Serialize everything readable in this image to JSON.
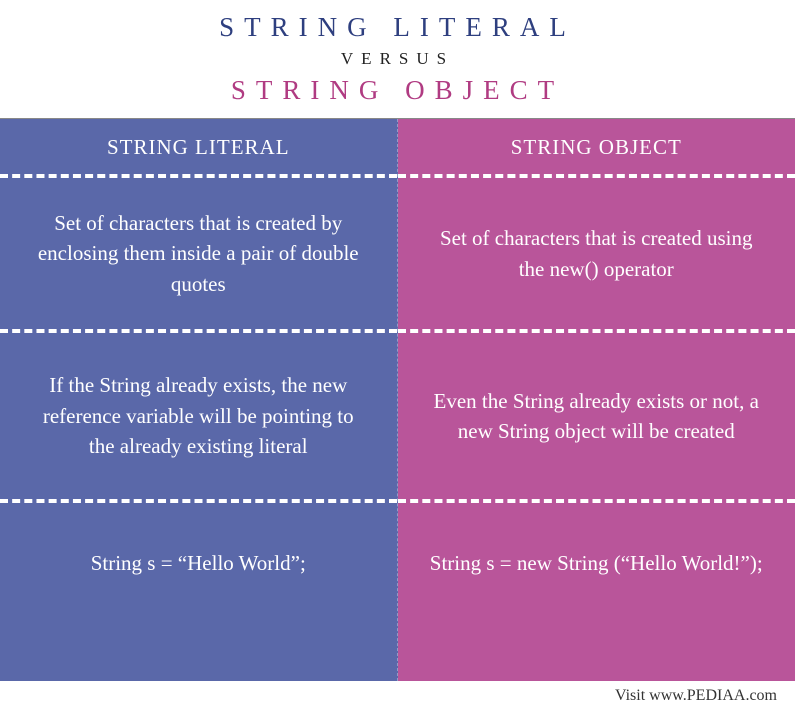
{
  "header": {
    "title_literal": "STRING LITERAL",
    "versus": "VERSUS",
    "title_object": "STRING OBJECT",
    "literal_color": "#2e3f7f",
    "object_color": "#b03b82"
  },
  "columns": {
    "left": {
      "bg_color": "#5a68a9",
      "header": "STRING LITERAL",
      "definition": "Set of characters that is created by enclosing them inside a pair of double quotes",
      "behavior": "If the String already exists, the new reference variable will be pointing to the already existing literal",
      "example": "String s = “Hello World”;"
    },
    "right": {
      "bg_color": "#b9559a",
      "header": "STRING OBJECT",
      "definition": "Set of characters that is created using the new() operator",
      "behavior": "Even the String already exists or not, a new String object will be created",
      "example": "String s = new String (“Hello World!”);"
    }
  },
  "footer": {
    "text": "Visit www.PEDIAA.com"
  }
}
